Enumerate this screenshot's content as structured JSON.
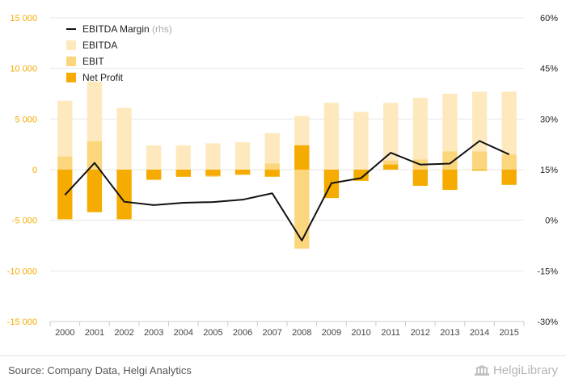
{
  "chart_data": {
    "type": "bar",
    "categories": [
      "2000",
      "2001",
      "2002",
      "2003",
      "2004",
      "2005",
      "2006",
      "2007",
      "2008",
      "2009",
      "2010",
      "2011",
      "2012",
      "2013",
      "2014",
      "2015"
    ],
    "series": [
      {
        "name": "EBITDA",
        "kind": "bar",
        "color": "#fde9bd",
        "values": [
          6800,
          8700,
          6100,
          2400,
          2400,
          2600,
          2700,
          3600,
          5300,
          6600,
          5700,
          6600,
          7100,
          7500,
          7700,
          7700
        ]
      },
      {
        "name": "EBIT",
        "kind": "bar",
        "color": "#fcd67d",
        "values": [
          1300,
          2800,
          -4900,
          -1000,
          -700,
          -700,
          -500,
          600,
          -7800,
          -2800,
          -1100,
          900,
          1000,
          1800,
          1800,
          1500
        ]
      },
      {
        "name": "Net Profit",
        "kind": "bar",
        "color": "#f5ab00",
        "values": [
          -4900,
          -4200,
          -4900,
          -1000,
          -700,
          -600,
          -500,
          -700,
          2400,
          -2800,
          -1100,
          500,
          -1600,
          -2000,
          -100,
          -1500
        ]
      },
      {
        "name": "EBITDA Margin",
        "legend_suffix": "(rhs)",
        "kind": "line",
        "axis": "right",
        "color": "#111111",
        "values": [
          7.5,
          17,
          5.5,
          4.5,
          5.2,
          5.4,
          6.1,
          8,
          -6,
          11,
          12.5,
          20,
          16.5,
          16.8,
          23.5,
          19.5
        ]
      }
    ],
    "left_axis": {
      "min": -15000,
      "max": 15000,
      "ticks": [
        "-15 000",
        "-10 000",
        "-5 000",
        "0",
        "5 000",
        "10 000",
        "15 000"
      ]
    },
    "right_axis": {
      "min": -30,
      "max": 60,
      "ticks": [
        "-30%",
        "-15%",
        "0%",
        "15%",
        "30%",
        "45%",
        "60%"
      ]
    },
    "grid": true,
    "legend_position": "top-left"
  },
  "colors": {
    "left_tick": "#f5ab00",
    "right_tick": "#222222",
    "x_tick": "#444444",
    "grid": "#e6e6e6"
  },
  "footer": {
    "source": "Source: Company Data, Helgi Analytics",
    "brand": "HelgiLibrary",
    "brand_icon": "building-icon"
  }
}
